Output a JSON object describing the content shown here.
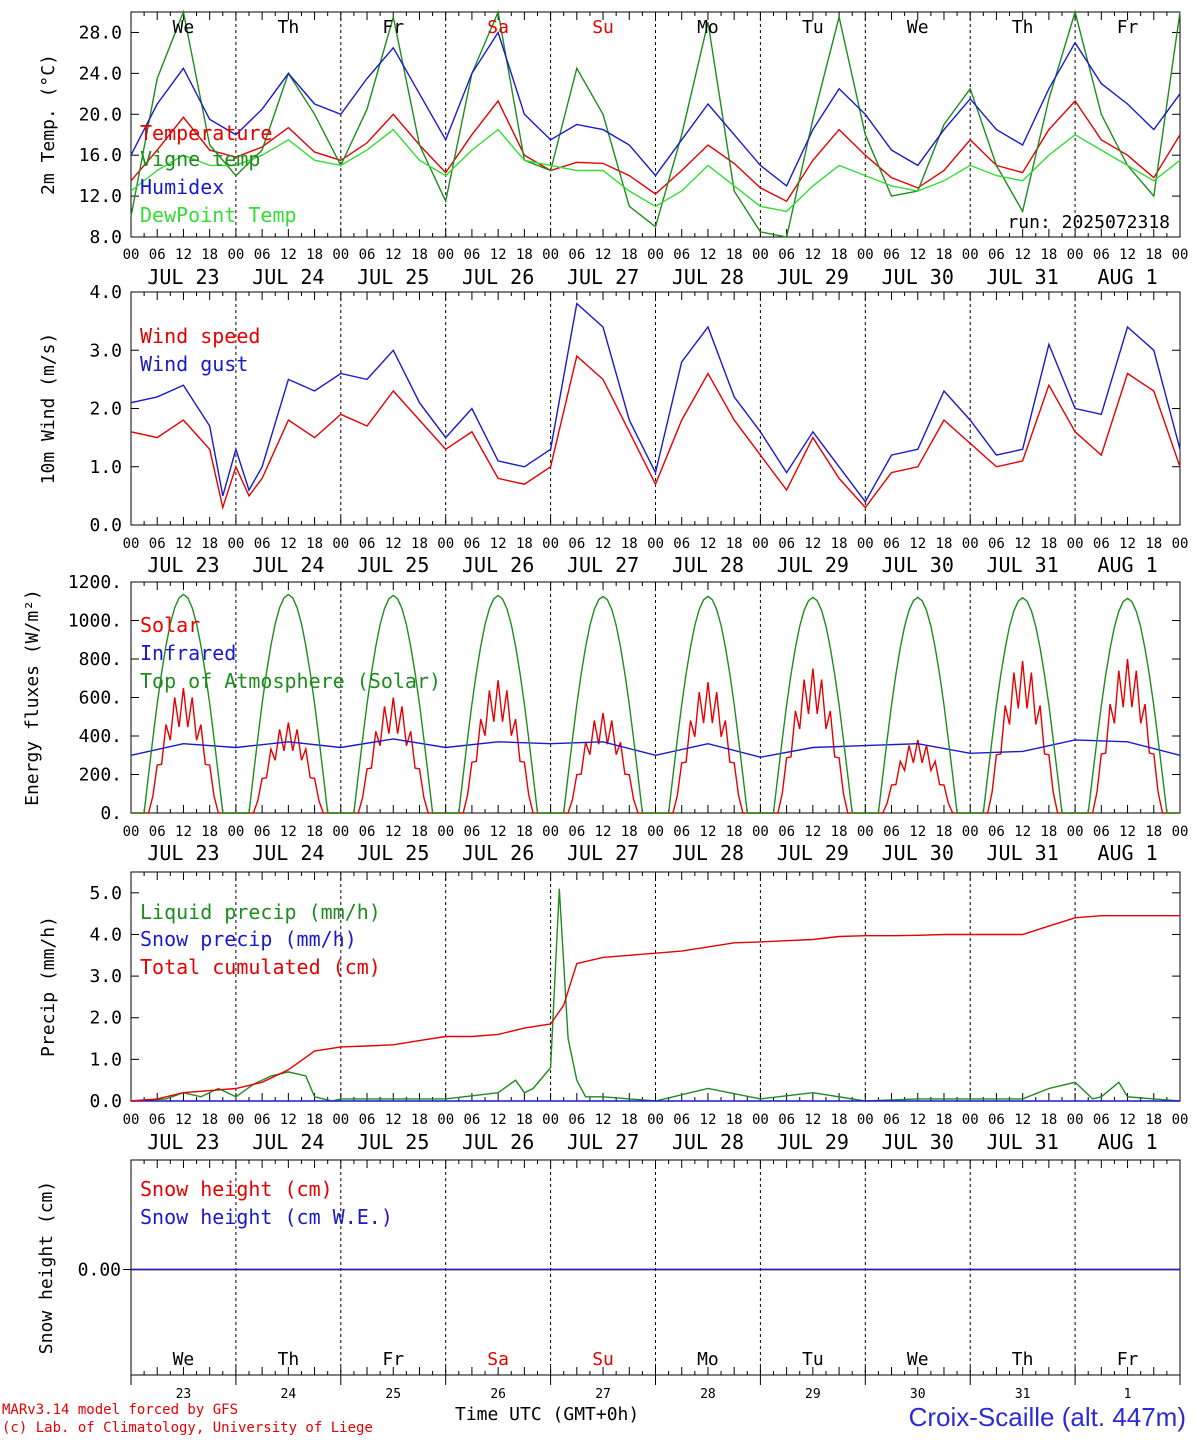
{
  "chart_data": [
    {
      "panel": "temperature",
      "type": "line",
      "ylabel": "2m Temp. (°C)",
      "ylim": [
        8.0,
        30.0
      ],
      "yticks": [
        "8.0",
        "12.0",
        "16.0",
        "20.0",
        "24.0",
        "28.0"
      ],
      "annotation": "run: 2025072318",
      "legend": [
        "Temperature",
        "Vigne temp",
        "Humidex",
        "DewPoint Temp"
      ],
      "legend_colors": [
        "#e60000",
        "#1e8c1e",
        "#1a1acd",
        "#33dd33"
      ],
      "series": [
        {
          "name": "Temperature",
          "color": "#e60000",
          "x": [
            0,
            6,
            12,
            18,
            24,
            30,
            36,
            42,
            48,
            54,
            60,
            66,
            72,
            78,
            84,
            90,
            96,
            102,
            108,
            114,
            120,
            126,
            132,
            138,
            144,
            150,
            156,
            162,
            168,
            174,
            180,
            186,
            192,
            198,
            204,
            210,
            216,
            222,
            228,
            234,
            240
          ],
          "values": [
            13.5,
            16.5,
            19.7,
            16.5,
            15.8,
            16.8,
            18.7,
            16.3,
            15.5,
            17.2,
            20.0,
            17.0,
            14.3,
            18.0,
            21.3,
            16.0,
            14.5,
            15.3,
            15.2,
            14.0,
            12.2,
            14.5,
            17.0,
            15.2,
            12.8,
            11.5,
            15.5,
            18.5,
            16.0,
            13.8,
            12.8,
            14.5,
            17.5,
            15.0,
            14.3,
            18.5,
            21.3,
            17.5,
            16.0,
            13.8,
            18.0
          ]
        },
        {
          "name": "Vigne temp",
          "color": "#1e8c1e",
          "x": [
            0,
            6,
            12,
            18,
            24,
            30,
            36,
            42,
            48,
            54,
            60,
            66,
            72,
            78,
            84,
            90,
            96,
            102,
            108,
            114,
            120,
            126,
            132,
            138,
            144,
            150,
            156,
            162,
            168,
            174,
            180,
            186,
            192,
            198,
            204,
            210,
            216,
            222,
            228,
            234,
            240
          ],
          "values": [
            10.0,
            23.5,
            31.0,
            17.0,
            14.0,
            16.5,
            24.0,
            20.0,
            15.0,
            20.5,
            29.5,
            17.0,
            11.5,
            24.0,
            31.5,
            15.5,
            14.5,
            24.5,
            20.0,
            11.0,
            9.0,
            18.0,
            29.0,
            12.5,
            8.5,
            8.0,
            19.5,
            29.5,
            18.0,
            12.0,
            12.5,
            19.0,
            22.5,
            15.0,
            10.5,
            21.5,
            31.0,
            20.0,
            15.0,
            12.0,
            31.0
          ]
        },
        {
          "name": "Humidex",
          "color": "#1a1acd",
          "x": [
            0,
            6,
            12,
            18,
            24,
            30,
            36,
            42,
            48,
            54,
            60,
            66,
            72,
            78,
            84,
            90,
            96,
            102,
            108,
            114,
            120,
            126,
            132,
            138,
            144,
            150,
            156,
            162,
            168,
            174,
            180,
            186,
            192,
            198,
            204,
            210,
            216,
            222,
            228,
            234,
            240
          ],
          "values": [
            16.0,
            21.0,
            24.5,
            19.5,
            18.0,
            20.5,
            24.0,
            21.0,
            20.0,
            23.5,
            26.5,
            22.0,
            17.5,
            24.0,
            28.0,
            20.0,
            17.5,
            19.0,
            18.5,
            17.0,
            14.0,
            17.5,
            21.0,
            18.0,
            15.0,
            13.0,
            18.5,
            22.5,
            20.0,
            16.5,
            15.0,
            18.5,
            21.5,
            18.5,
            17.0,
            22.5,
            27.0,
            23.0,
            21.0,
            18.5,
            22.0
          ]
        },
        {
          "name": "DewPoint Temp",
          "color": "#33dd33",
          "x": [
            0,
            6,
            12,
            18,
            24,
            30,
            36,
            42,
            48,
            54,
            60,
            66,
            72,
            78,
            84,
            90,
            96,
            102,
            108,
            114,
            120,
            126,
            132,
            138,
            144,
            150,
            156,
            162,
            168,
            174,
            180,
            186,
            192,
            198,
            204,
            210,
            216,
            222,
            228,
            234,
            240
          ],
          "values": [
            12.5,
            14.5,
            16.0,
            15.0,
            15.0,
            16.0,
            17.5,
            15.5,
            15.0,
            16.5,
            18.5,
            15.5,
            14.0,
            16.5,
            18.5,
            15.5,
            15.0,
            14.5,
            14.5,
            12.5,
            11.0,
            12.5,
            15.0,
            13.0,
            11.0,
            10.5,
            13.0,
            15.0,
            14.0,
            13.0,
            12.5,
            13.5,
            15.0,
            14.0,
            13.5,
            16.0,
            18.0,
            16.5,
            15.0,
            13.5,
            15.5
          ]
        }
      ]
    },
    {
      "panel": "wind",
      "type": "line",
      "ylabel": "10m Wind (m/s)",
      "ylim": [
        0.0,
        4.0
      ],
      "yticks": [
        "0.0",
        "1.0",
        "2.0",
        "3.0",
        "4.0"
      ],
      "legend": [
        "Wind speed",
        "Wind gust"
      ],
      "legend_colors": [
        "#e60000",
        "#1a1acd"
      ],
      "series": [
        {
          "name": "Wind speed",
          "color": "#e60000",
          "x": [
            0,
            6,
            12,
            18,
            21,
            24,
            27,
            30,
            36,
            42,
            48,
            54,
            60,
            66,
            72,
            78,
            84,
            90,
            96,
            102,
            108,
            114,
            120,
            126,
            132,
            138,
            144,
            150,
            156,
            162,
            168,
            174,
            180,
            186,
            192,
            198,
            204,
            210,
            216,
            222,
            228,
            234,
            240
          ],
          "values": [
            1.6,
            1.5,
            1.8,
            1.3,
            0.3,
            1.0,
            0.5,
            0.8,
            1.8,
            1.5,
            1.9,
            1.7,
            2.3,
            1.8,
            1.3,
            1.6,
            0.8,
            0.7,
            1.0,
            2.9,
            2.5,
            1.6,
            0.7,
            1.8,
            2.6,
            1.8,
            1.2,
            0.6,
            1.5,
            0.8,
            0.3,
            0.9,
            1.0,
            1.8,
            1.4,
            1.0,
            1.1,
            2.4,
            1.6,
            1.2,
            2.6,
            2.3,
            1.0
          ]
        },
        {
          "name": "Wind gust",
          "color": "#1a1acd",
          "x": [
            0,
            6,
            12,
            18,
            21,
            24,
            27,
            30,
            36,
            42,
            48,
            54,
            60,
            66,
            72,
            78,
            84,
            90,
            96,
            102,
            108,
            114,
            120,
            126,
            132,
            138,
            144,
            150,
            156,
            162,
            168,
            174,
            180,
            186,
            192,
            198,
            204,
            210,
            216,
            222,
            228,
            234,
            240
          ],
          "values": [
            2.1,
            2.2,
            2.4,
            1.7,
            0.5,
            1.3,
            0.6,
            1.0,
            2.5,
            2.3,
            2.6,
            2.5,
            3.0,
            2.1,
            1.5,
            2.0,
            1.1,
            1.0,
            1.3,
            3.8,
            3.4,
            1.8,
            0.9,
            2.8,
            3.4,
            2.2,
            1.6,
            0.9,
            1.6,
            1.0,
            0.4,
            1.2,
            1.3,
            2.3,
            1.8,
            1.2,
            1.3,
            3.1,
            2.0,
            1.9,
            3.4,
            3.0,
            1.3
          ]
        }
      ]
    },
    {
      "panel": "energy",
      "type": "line",
      "ylabel": "Energy fluxes (W/m²)",
      "ylim": [
        0,
        1200
      ],
      "yticks": [
        "0.",
        "200.",
        "400.",
        "600.",
        "800.",
        "1000.",
        "1200."
      ],
      "legend": [
        "Solar",
        "Infrared",
        "Top of Atmosphere (Solar)"
      ],
      "legend_colors": [
        "#e60000",
        "#1a1acd",
        "#1e8c1e"
      ],
      "series": [
        {
          "name": "Solar",
          "color": "#e60000",
          "peaks": [
            650,
            470,
            600,
            690,
            520,
            680,
            750,
            380,
            790,
            800
          ]
        },
        {
          "name": "Infrared",
          "color": "#1a1acd",
          "x": [
            0,
            12,
            24,
            36,
            48,
            60,
            72,
            84,
            96,
            108,
            120,
            132,
            144,
            156,
            168,
            180,
            192,
            204,
            216,
            228,
            240
          ],
          "values": [
            300,
            360,
            340,
            370,
            340,
            385,
            340,
            370,
            360,
            370,
            300,
            360,
            290,
            340,
            350,
            360,
            310,
            320,
            380,
            370,
            300
          ]
        },
        {
          "name": "Top of Atmosphere (Solar)",
          "color": "#1e8c1e",
          "peaks": [
            1135,
            1135,
            1130,
            1130,
            1125,
            1125,
            1120,
            1120,
            1118,
            1115
          ]
        }
      ]
    },
    {
      "panel": "precip",
      "type": "line",
      "ylabel": "Precip (mm/h)",
      "ylim": [
        0.0,
        5.5
      ],
      "yticks": [
        "0.0",
        "1.0",
        "2.0",
        "3.0",
        "4.0",
        "5.0"
      ],
      "legend": [
        "Liquid precip (mm/h)",
        "Snow precip (mm/h)",
        "Total cumulated (cm)"
      ],
      "legend_colors": [
        "#1e8c1e",
        "#1a1acd",
        "#e60000"
      ],
      "series": [
        {
          "name": "Liquid precip (mm/h)",
          "color": "#1e8c1e",
          "x": [
            0,
            8,
            12,
            16,
            20,
            24,
            28,
            32,
            36,
            40,
            42,
            44,
            46,
            48,
            60,
            72,
            84,
            88,
            90,
            92,
            96,
            98,
            100,
            102,
            104,
            108,
            114,
            120,
            132,
            144,
            156,
            168,
            180,
            204,
            210,
            214,
            216,
            220,
            222,
            226,
            228,
            240
          ],
          "values": [
            0,
            0.05,
            0.2,
            0.1,
            0.3,
            0.1,
            0.4,
            0.6,
            0.7,
            0.6,
            0.1,
            0.05,
            0,
            0.05,
            0.05,
            0.05,
            0.2,
            0.5,
            0.2,
            0.3,
            0.8,
            5.1,
            1.5,
            0.5,
            0.1,
            0.1,
            0.05,
            0,
            0.3,
            0.05,
            0.2,
            0,
            0.05,
            0.05,
            0.3,
            0.4,
            0.45,
            0.05,
            0.1,
            0.45,
            0.1,
            0
          ]
        },
        {
          "name": "Snow precip (mm/h)",
          "color": "#1a1acd",
          "x": [
            0,
            240
          ],
          "values": [
            0,
            0
          ]
        },
        {
          "name": "Total cumulated (cm)",
          "color": "#e60000",
          "x": [
            0,
            6,
            12,
            18,
            24,
            30,
            36,
            42,
            48,
            54,
            60,
            66,
            72,
            78,
            84,
            90,
            96,
            99,
            102,
            108,
            114,
            120,
            126,
            132,
            138,
            144,
            150,
            156,
            162,
            168,
            174,
            180,
            186,
            192,
            198,
            204,
            210,
            216,
            222,
            228,
            234,
            240
          ],
          "values": [
            0,
            0.05,
            0.2,
            0.25,
            0.3,
            0.45,
            0.75,
            1.2,
            1.3,
            1.32,
            1.35,
            1.45,
            1.55,
            1.55,
            1.6,
            1.75,
            1.85,
            2.3,
            3.3,
            3.45,
            3.5,
            3.55,
            3.6,
            3.7,
            3.8,
            3.82,
            3.85,
            3.88,
            3.95,
            3.97,
            3.97,
            3.98,
            4.0,
            4.0,
            4.0,
            4.0,
            4.2,
            4.4,
            4.45,
            4.45,
            4.45,
            4.45
          ]
        }
      ]
    },
    {
      "panel": "snow",
      "type": "line",
      "ylabel": "Snow height (cm)",
      "yticks": [
        "0.00"
      ],
      "legend": [
        "Snow height (cm)",
        "Snow height (cm W.E.)"
      ],
      "legend_colors": [
        "#e60000",
        "#1a1acd"
      ],
      "series": [
        {
          "name": "Snow height (cm)",
          "color": "#e60000",
          "x": [
            0,
            240
          ],
          "values": [
            0,
            0
          ]
        },
        {
          "name": "Snow height (cm W.E.)",
          "color": "#1a1acd",
          "x": [
            0,
            240
          ],
          "values": [
            0,
            0
          ]
        }
      ]
    }
  ],
  "axis": {
    "hour_labels": [
      "00",
      "06",
      "12",
      "18"
    ],
    "day_labels": [
      "JUL 23",
      "JUL 24",
      "JUL 25",
      "JUL 26",
      "JUL 27",
      "JUL 28",
      "JUL 29",
      "JUL 30",
      "JUL 31",
      "AUG  1"
    ],
    "weekdays": [
      "We",
      "Th",
      "Fr",
      "Sa",
      "Su",
      "Mo",
      "Tu",
      "We",
      "Th",
      "Fr"
    ],
    "weekend_flags": [
      false,
      false,
      false,
      true,
      true,
      false,
      false,
      false,
      false,
      false
    ],
    "day_numbers": [
      "23",
      "24",
      "25",
      "26",
      "27",
      "28",
      "29",
      "30",
      "31",
      "1"
    ],
    "weekday_color": "#000000",
    "weekend_color": "#e60000"
  },
  "footer": {
    "model_line": "MARv3.14 model forced by GFS",
    "credit_line": "(c) Lab. of Climatology, University of Liege",
    "xlabel": "Time UTC (GMT+0h)",
    "station": "Croix-Scaille (alt. 447m)"
  }
}
